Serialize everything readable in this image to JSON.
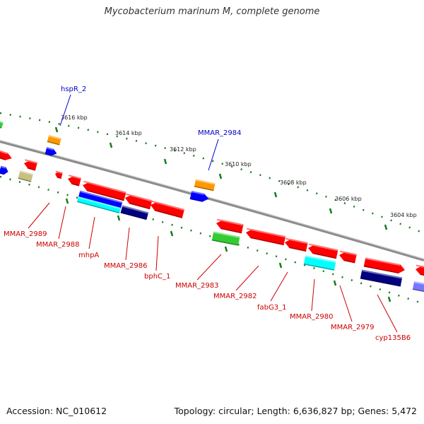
{
  "title": "Mycobacterium marinum M, complete genome",
  "footer": {
    "accession": "Accession: NC_010612",
    "summary": "Topology: circular; Length: 6,636,827 bp; Genes: 5,472"
  },
  "ruler": {
    "ticks": [
      "3616 kbp",
      "3614 kbp",
      "3612 kbp",
      "3610 kbp",
      "3608 kbp",
      "3606 kbp",
      "3604 kbp"
    ]
  },
  "gene_labels": {
    "forward": [
      "hspR_2",
      "MMAR_2984"
    ],
    "reverse": [
      "MMAR_2989",
      "MMAR_2988",
      "mhpA",
      "MMAR_2986",
      "bphC_1",
      "MMAR_2983",
      "MMAR_2982",
      "fabG3_1",
      "MMAR_2980",
      "MMAR_2979",
      "cyp135B6"
    ]
  },
  "colors": {
    "backbone": "#8c8c8c",
    "ruler": "#1a7a1a",
    "forward_label": "#0000cc",
    "reverse_label": "#cc0000",
    "cds": "#ff0000",
    "orange": "#ff9900",
    "blue": "#0000ff",
    "navy": "#000080",
    "cyan": "#00ffff",
    "green": "#33cc33",
    "khaki": "#c8c080",
    "lavender": "#7777ff"
  }
}
